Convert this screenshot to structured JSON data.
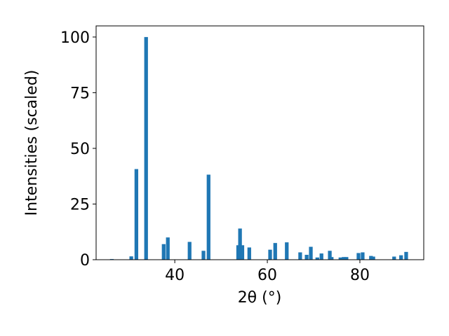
{
  "chart_data": {
    "type": "bar",
    "x_label": "2θ (°)",
    "y_label": "Intensities (scaled)",
    "color": "#1f77b4",
    "x": [
      26.4,
      30.6,
      31.7,
      33.8,
      37.6,
      38.5,
      43.2,
      46.2,
      47.3,
      53.7,
      54.1,
      54.6,
      56.1,
      60.6,
      61.7,
      64.2,
      67.1,
      68.5,
      69.4,
      70.8,
      71.7,
      73.5,
      73.9,
      75.8,
      76.5,
      77.1,
      79.7,
      80.6,
      82.4,
      82.9,
      87.4,
      88.9,
      90.0
    ],
    "values": [
      0.3,
      1.5,
      40.7,
      100,
      7,
      10,
      8,
      4,
      38.2,
      6.5,
      14,
      6.5,
      5.5,
      4.5,
      7.5,
      7.8,
      3.3,
      2.2,
      5.8,
      1,
      2.8,
      4,
      1.2,
      1,
      1.2,
      1.2,
      3,
      3.3,
      1.7,
      1.4,
      1.4,
      2,
      3.5
    ],
    "xlim": [
      23,
      93.8
    ],
    "ylim": [
      0,
      105
    ],
    "xticks": [
      40,
      60,
      80
    ],
    "yticks": [
      0,
      25,
      50,
      75,
      100
    ]
  }
}
